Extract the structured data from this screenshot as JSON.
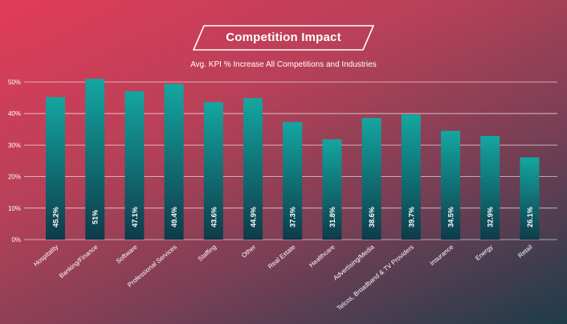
{
  "chart_data": {
    "type": "bar",
    "title": "Competition Impact",
    "subtitle": "Avg. KPI % Increase All Competitions and Industries",
    "xlabel": "",
    "ylabel": "",
    "ylim": [
      0,
      50
    ],
    "yticks": [
      "0%",
      "10%",
      "20%",
      "30%",
      "40%",
      "50%"
    ],
    "ytick_values": [
      0,
      10,
      20,
      30,
      40,
      50
    ],
    "grid": true,
    "categories": [
      "Hospitality",
      "Banking/Finance",
      "Software",
      "Professional Services",
      "Staffing",
      "Other",
      "Real Estate",
      "Healthcare",
      "Advertising/Media",
      "Telcos, Broadband & TV Providers",
      "Insurance",
      "Energy",
      "Retail"
    ],
    "values": [
      45.2,
      51,
      47.1,
      49.4,
      43.6,
      44.9,
      37.3,
      31.8,
      38.6,
      39.7,
      34.5,
      32.9,
      26.1
    ],
    "value_labels": [
      "45.2%",
      "51%",
      "47.1%",
      "49.4%",
      "43.6%",
      "44.9%",
      "37.3%",
      "31.8%",
      "38.6%",
      "39.7%",
      "34.5%",
      "32.9%",
      "26.1%"
    ],
    "colors": {
      "bar_top": "#14a6a0",
      "bar_bottom": "#0e3b4a",
      "grid": "#ffffff",
      "text": "#ffffff"
    }
  }
}
